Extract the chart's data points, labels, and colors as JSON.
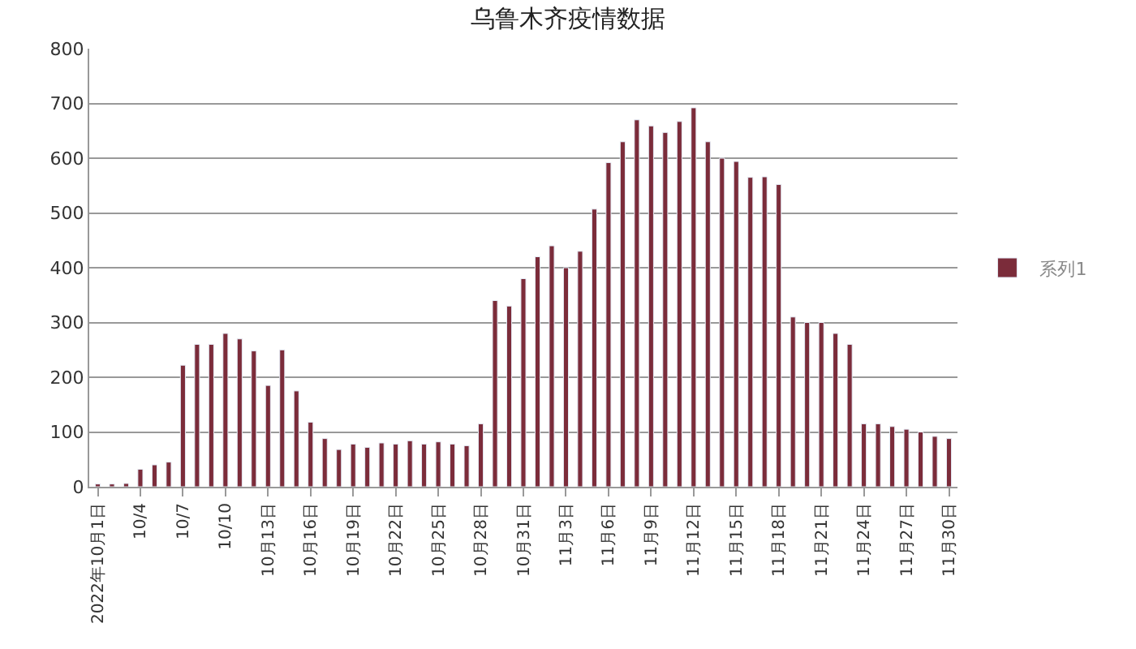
{
  "chart_data": {
    "type": "bar",
    "title": "乌鲁木齐疫情数据",
    "categories": [
      "2022年10月1日",
      null,
      null,
      "10/4",
      null,
      null,
      "10/7",
      null,
      null,
      "10/10",
      null,
      null,
      "10月13日",
      null,
      null,
      "10月16日",
      null,
      null,
      "10月19日",
      null,
      null,
      "10月22日",
      null,
      null,
      "10月25日",
      null,
      null,
      "10月28日",
      null,
      null,
      "10月31日",
      null,
      null,
      "11月3日",
      null,
      null,
      "11月6日",
      null,
      null,
      "11月9日",
      null,
      null,
      "11月12日",
      null,
      null,
      "11月15日",
      null,
      null,
      "11月18日",
      null,
      null,
      "11月21日",
      null,
      null,
      "11月24日",
      null,
      null,
      "11月27日",
      null,
      null,
      "11月30日"
    ],
    "series": [
      {
        "name": "系列1",
        "color": "#7b2c3a",
        "values": [
          5,
          5,
          6,
          32,
          40,
          45,
          222,
          260,
          260,
          280,
          270,
          248,
          185,
          250,
          175,
          118,
          88,
          68,
          78,
          72,
          80,
          78,
          84,
          78,
          82,
          78,
          75,
          115,
          340,
          330,
          380,
          420,
          440,
          400,
          430,
          507,
          592,
          630,
          670,
          659,
          647,
          667,
          692,
          630,
          600,
          594,
          565,
          566,
          552,
          310,
          300,
          300,
          280,
          260,
          115,
          115,
          110,
          105,
          100,
          92,
          88
        ]
      }
    ],
    "ylim": [
      0,
      800
    ],
    "yticks": [
      0,
      100,
      200,
      300,
      400,
      500,
      600,
      700,
      800
    ],
    "grid": "y",
    "legend": "right"
  }
}
